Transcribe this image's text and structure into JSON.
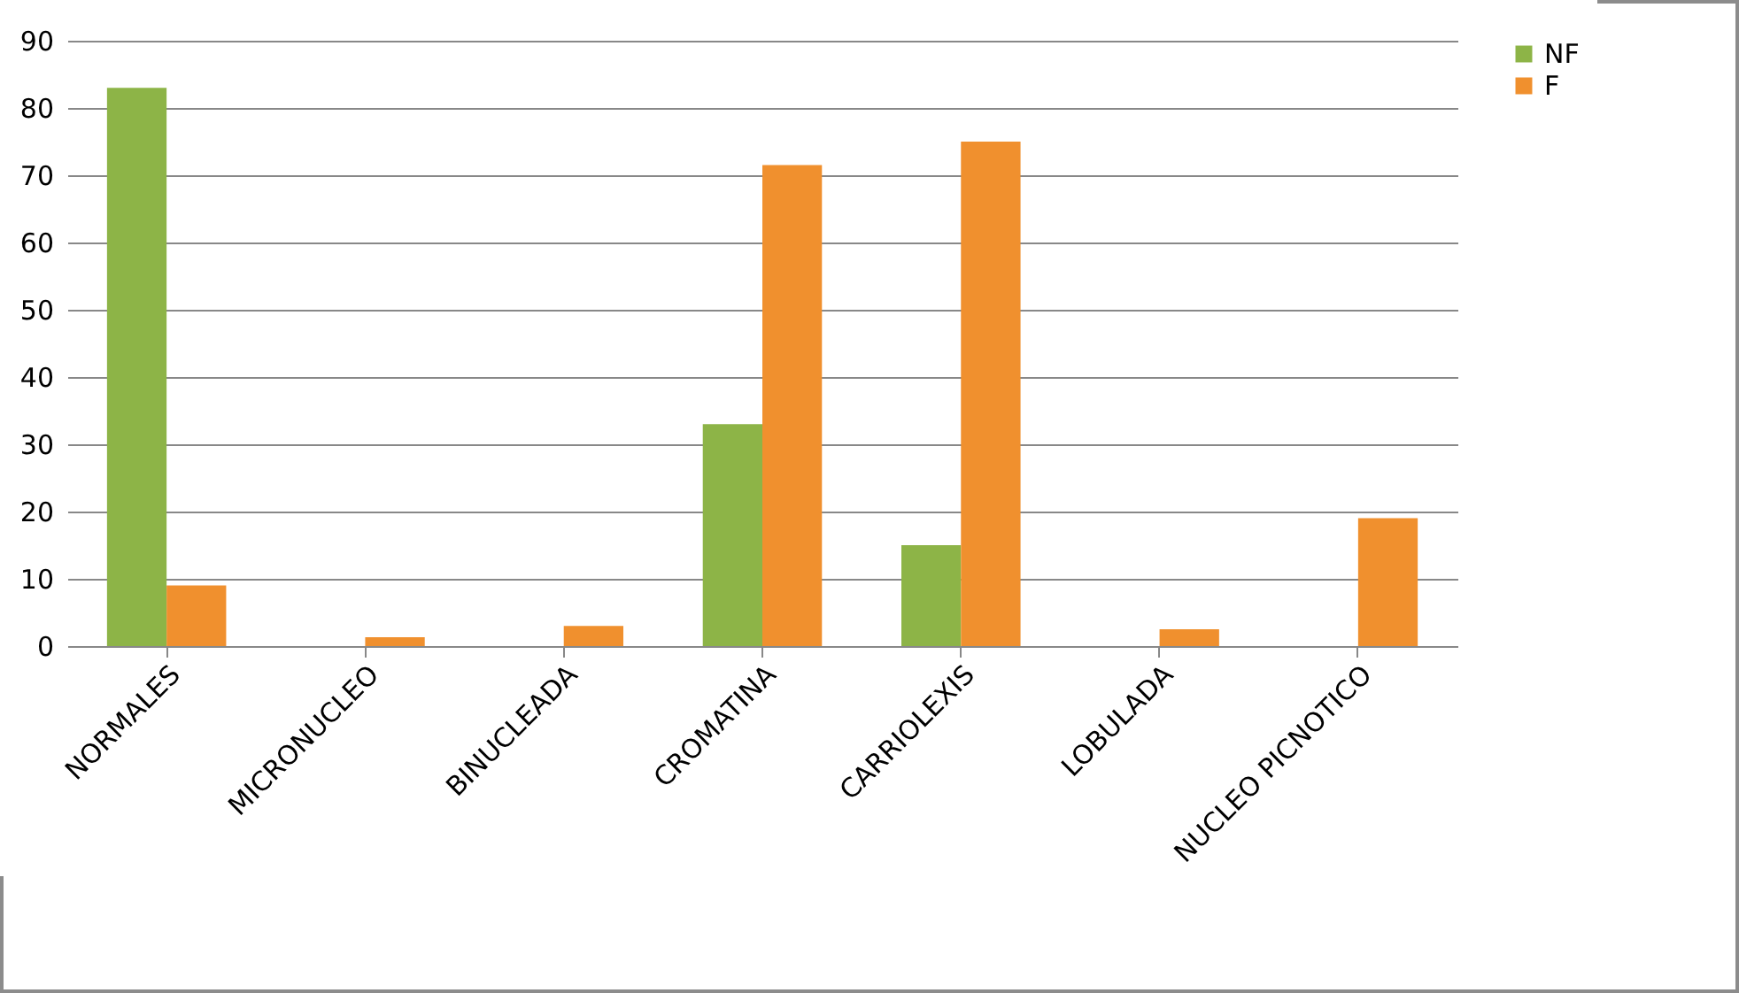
{
  "chart_data": {
    "type": "bar",
    "categories": [
      "NORMALES",
      "MICRONUCLEO",
      "BINUCLEADA",
      "CROMATINA",
      "CARRIOLEXIS",
      "LOBULADA",
      "NUCLEO PICNOTICO"
    ],
    "series": [
      {
        "name": "NF",
        "color": "#8db447",
        "values": [
          83,
          0,
          0,
          33,
          15,
          0,
          0
        ]
      },
      {
        "name": "F",
        "color": "#f0902e",
        "values": [
          9,
          1.3,
          3,
          71.5,
          75,
          2.5,
          19
        ]
      }
    ],
    "ylim": [
      0,
      90
    ],
    "yticks": [
      0,
      10,
      20,
      30,
      40,
      50,
      60,
      70,
      80,
      90
    ],
    "grid": "y",
    "legend": "right"
  }
}
